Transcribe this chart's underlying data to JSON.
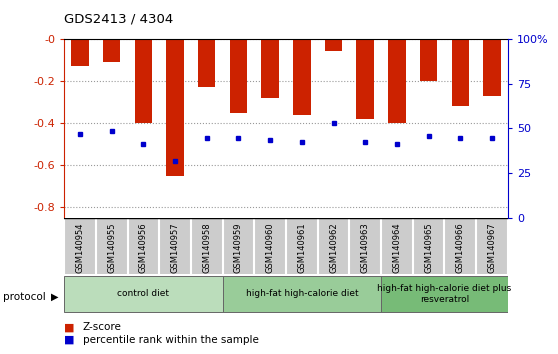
{
  "title": "GDS2413 / 4304",
  "samples": [
    "GSM140954",
    "GSM140955",
    "GSM140956",
    "GSM140957",
    "GSM140958",
    "GSM140959",
    "GSM140960",
    "GSM140961",
    "GSM140962",
    "GSM140963",
    "GSM140964",
    "GSM140965",
    "GSM140966",
    "GSM140967"
  ],
  "zscore": [
    -0.13,
    -0.11,
    -0.4,
    -0.65,
    -0.23,
    -0.35,
    -0.28,
    -0.36,
    -0.055,
    -0.38,
    -0.4,
    -0.2,
    -0.32,
    -0.27
  ],
  "percentile_y": [
    -0.45,
    -0.44,
    -0.5,
    -0.58,
    -0.47,
    -0.47,
    -0.48,
    -0.49,
    -0.4,
    -0.49,
    -0.5,
    -0.46,
    -0.47,
    -0.47
  ],
  "bar_color": "#cc2200",
  "dot_color": "#0000cc",
  "ylim": [
    -0.85,
    0.0
  ],
  "groups": [
    {
      "label": "control diet",
      "start": 0,
      "end": 5,
      "color": "#bbddbb"
    },
    {
      "label": "high-fat high-calorie diet",
      "start": 5,
      "end": 10,
      "color": "#99cc99"
    },
    {
      "label": "high-fat high-calorie diet plus\nresveratrol",
      "start": 10,
      "end": 14,
      "color": "#77bb77"
    }
  ],
  "left_axis_color": "#cc2200",
  "right_axis_color": "#0000cc",
  "left_ticks": [
    0.0,
    -0.2,
    -0.4,
    -0.6,
    -0.8
  ],
  "left_tick_labels": [
    "-0",
    "-0.2",
    "-0.4",
    "-0.6",
    "-0.8"
  ],
  "right_ticks_mapped": [
    0.0,
    -0.2125,
    -0.425,
    -0.6375,
    -0.85
  ],
  "right_tick_labels": [
    "100%",
    "75",
    "50",
    "25",
    "0"
  ]
}
